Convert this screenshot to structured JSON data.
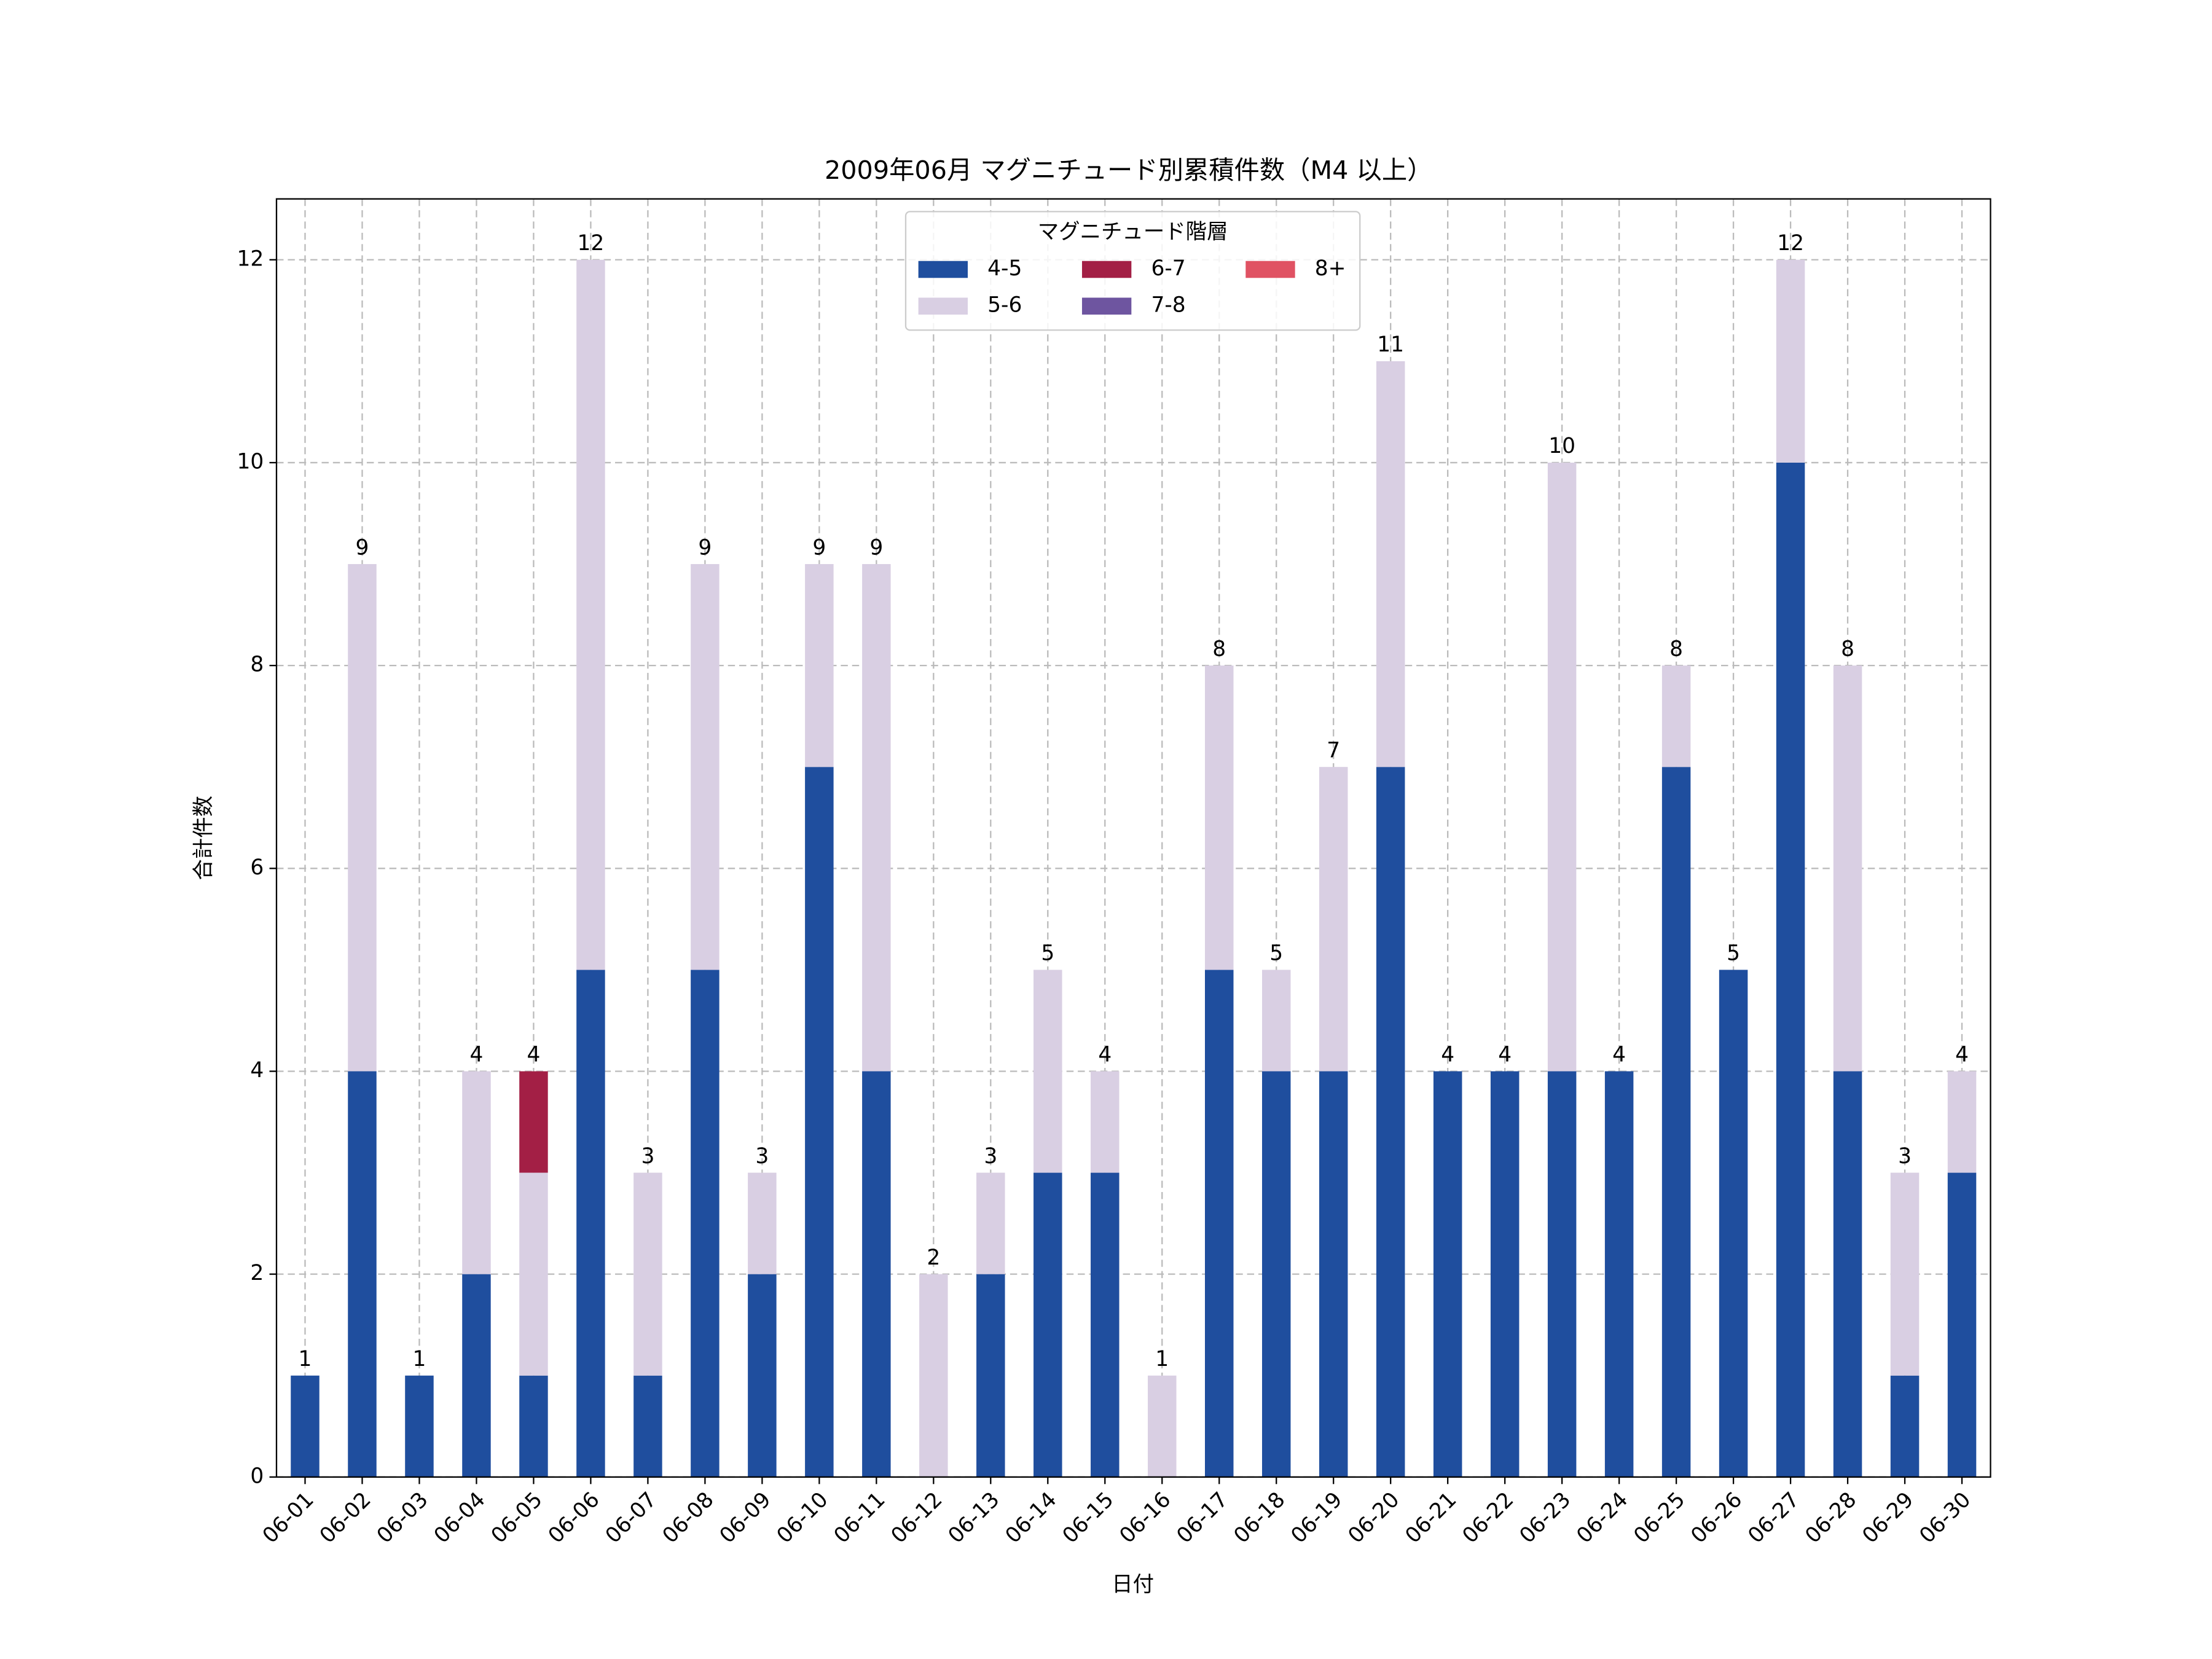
{
  "chart_data": {
    "type": "stacked_bar",
    "title": "2009年06月 マグニチュード別累積件数（M4 以上）",
    "xlabel": "日付",
    "ylabel": "合計件数",
    "categories": [
      "06-01",
      "06-02",
      "06-03",
      "06-04",
      "06-05",
      "06-06",
      "06-07",
      "06-08",
      "06-09",
      "06-10",
      "06-11",
      "06-12",
      "06-13",
      "06-14",
      "06-15",
      "06-16",
      "06-17",
      "06-18",
      "06-19",
      "06-20",
      "06-21",
      "06-22",
      "06-23",
      "06-24",
      "06-25",
      "06-26",
      "06-27",
      "06-28",
      "06-29",
      "06-30"
    ],
    "series": [
      {
        "name": "4-5",
        "color": "#1f4e9e",
        "values": [
          1,
          4,
          1,
          2,
          1,
          5,
          1,
          5,
          2,
          7,
          4,
          0,
          2,
          3,
          3,
          0,
          5,
          4,
          4,
          7,
          4,
          4,
          4,
          4,
          7,
          5,
          10,
          4,
          1,
          3
        ]
      },
      {
        "name": "5-6",
        "color": "#d9cfe3",
        "values": [
          0,
          5,
          0,
          2,
          2,
          7,
          2,
          4,
          1,
          2,
          5,
          2,
          1,
          2,
          1,
          1,
          3,
          1,
          3,
          4,
          0,
          0,
          6,
          0,
          1,
          0,
          2,
          4,
          2,
          1
        ]
      },
      {
        "name": "6-7",
        "color": "#a31f45",
        "values": [
          0,
          0,
          0,
          0,
          1,
          0,
          0,
          0,
          0,
          0,
          0,
          0,
          0,
          0,
          0,
          0,
          0,
          0,
          0,
          0,
          0,
          0,
          0,
          0,
          0,
          0,
          0,
          0,
          0,
          0
        ]
      },
      {
        "name": "7-8",
        "color": "#6e55a0",
        "values": [
          0,
          0,
          0,
          0,
          0,
          0,
          0,
          0,
          0,
          0,
          0,
          0,
          0,
          0,
          0,
          0,
          0,
          0,
          0,
          0,
          0,
          0,
          0,
          0,
          0,
          0,
          0,
          0,
          0,
          0
        ]
      },
      {
        "name": "8+",
        "color": "#e05263",
        "values": [
          0,
          0,
          0,
          0,
          0,
          0,
          0,
          0,
          0,
          0,
          0,
          0,
          0,
          0,
          0,
          0,
          0,
          0,
          0,
          0,
          0,
          0,
          0,
          0,
          0,
          0,
          0,
          0,
          0,
          0
        ]
      }
    ],
    "totals": [
      1,
      9,
      1,
      4,
      4,
      12,
      3,
      9,
      3,
      9,
      9,
      2,
      3,
      5,
      4,
      1,
      8,
      5,
      7,
      11,
      4,
      4,
      10,
      4,
      8,
      5,
      12,
      8,
      3,
      4
    ],
    "legend_title": "マグニチュード階層",
    "legend_position": "upper center",
    "legend_columns": 3,
    "ylim": [
      0,
      12.6
    ],
    "yticks": [
      0,
      2,
      4,
      6,
      8,
      10,
      12
    ],
    "grid": true
  }
}
